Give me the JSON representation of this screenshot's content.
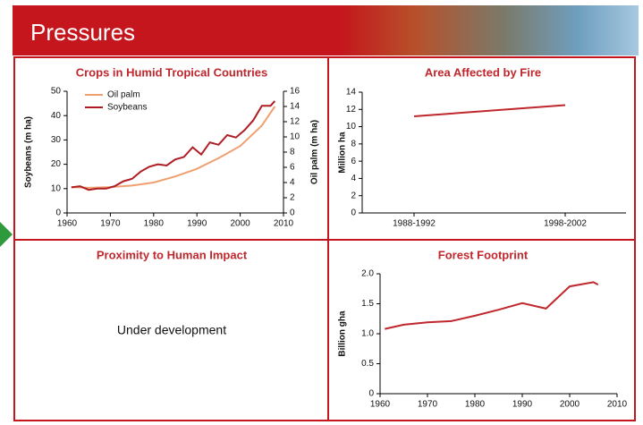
{
  "header": {
    "title": "Pressures"
  },
  "chart_data": [
    {
      "type": "line",
      "title": "Crops in Humid Tropical Countries",
      "ylabel": "Soybeans (m ha)",
      "y2label": "Oil palm (m ha)",
      "xlim": [
        1960,
        2010
      ],
      "xticks": [
        1960,
        1970,
        1980,
        1990,
        2000,
        2010
      ],
      "ylim": [
        0,
        50
      ],
      "yticks": [
        0,
        10,
        20,
        30,
        40,
        50
      ],
      "y2lim": [
        0,
        16
      ],
      "y2ticks": [
        0,
        2,
        4,
        6,
        8,
        10,
        12,
        14,
        16
      ],
      "series": [
        {
          "name": "Oil palm",
          "color": "#f0a070",
          "axis": "y2",
          "x": [
            1961,
            1965,
            1970,
            1975,
            1980,
            1985,
            1990,
            1995,
            2000,
            2005,
            2008
          ],
          "values": [
            3.4,
            3.3,
            3.4,
            3.6,
            4.0,
            4.8,
            5.8,
            7.2,
            8.8,
            11.5,
            14.0
          ]
        },
        {
          "name": "Soybeans",
          "color": "#b01c24",
          "x": [
            1961,
            1963,
            1965,
            1967,
            1969,
            1971,
            1973,
            1975,
            1977,
            1979,
            1981,
            1983,
            1985,
            1987,
            1989,
            1991,
            1993,
            1995,
            1997,
            1999,
            2001,
            2003,
            2005,
            2007,
            2008
          ],
          "values": [
            10.5,
            11,
            9.5,
            10,
            10,
            11,
            13,
            14,
            17,
            19,
            20,
            19.5,
            22,
            23,
            27,
            24,
            29,
            28,
            32,
            31,
            34,
            38,
            44,
            44,
            46
          ]
        }
      ]
    },
    {
      "type": "line",
      "title": "Area Affected by Fire",
      "ylabel": "Million ha",
      "categories": [
        "1988-1992",
        "1998-2002"
      ],
      "ylim": [
        0,
        14
      ],
      "yticks": [
        0,
        2,
        4,
        6,
        8,
        10,
        12,
        14
      ],
      "series": [
        {
          "color": "#c0272d",
          "values": [
            11.2,
            12.5
          ]
        }
      ]
    },
    {
      "type": "line",
      "title": "Forest Footprint",
      "ylabel": "Billion gha",
      "xlim": [
        1960,
        2010
      ],
      "xticks": [
        1960,
        1970,
        1980,
        1990,
        2000,
        2010
      ],
      "ylim": [
        0,
        2
      ],
      "yticks": [
        0,
        0.5,
        {
          "value": 1,
          "label": "1.0"
        },
        1.5,
        {
          "value": 2,
          "label": "2.0"
        }
      ],
      "series": [
        {
          "color": "#c0272d",
          "x": [
            1961,
            1965,
            1970,
            1975,
            1980,
            1985,
            1990,
            1995,
            2000,
            2005,
            2006
          ],
          "values": [
            1.08,
            1.15,
            1.19,
            1.21,
            1.3,
            1.4,
            1.51,
            1.42,
            1.79,
            1.86,
            1.82
          ]
        }
      ]
    }
  ],
  "placeholder": {
    "title": "Proximity to Human Impact",
    "text": "Under development"
  }
}
